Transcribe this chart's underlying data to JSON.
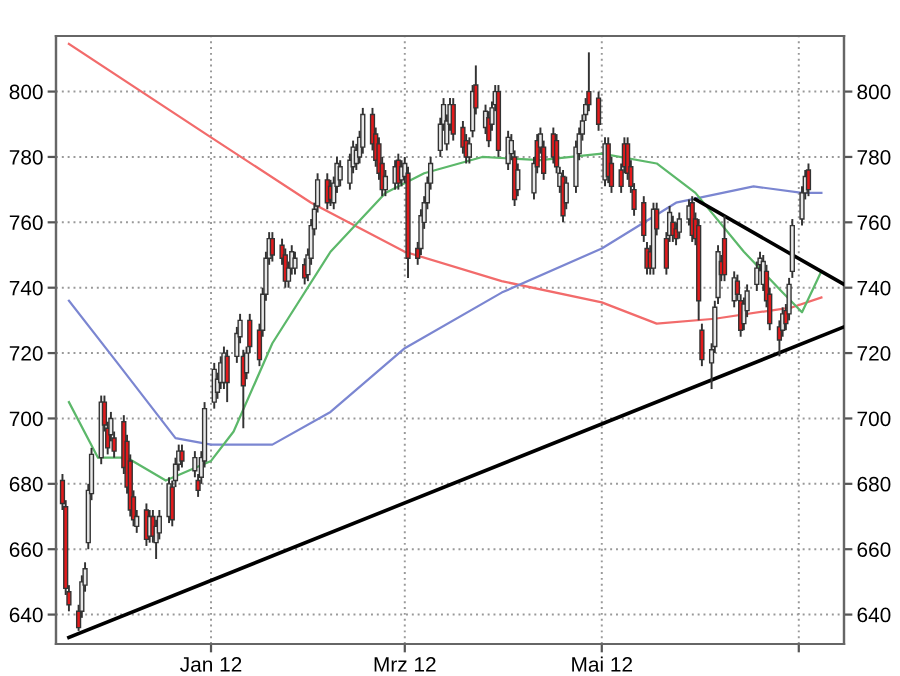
{
  "chart_data": {
    "type": "candlestick",
    "x": [
      "2011-11-16",
      "2011-11-17",
      "2011-11-18",
      "2011-11-21",
      "2011-11-22",
      "2011-11-23",
      "2011-11-24",
      "2011-11-25",
      "2011-11-28",
      "2011-11-29",
      "2011-11-30",
      "2011-12-01",
      "2011-12-02",
      "2011-12-05",
      "2011-12-06",
      "2011-12-07",
      "2011-12-08",
      "2011-12-09",
      "2011-12-12",
      "2011-12-13",
      "2011-12-14",
      "2011-12-15",
      "2011-12-16",
      "2011-12-19",
      "2011-12-20",
      "2011-12-21",
      "2011-12-22",
      "2011-12-23",
      "2011-12-27",
      "2011-12-28",
      "2011-12-29",
      "2011-12-30",
      "2012-01-02",
      "2012-01-03",
      "2012-01-04",
      "2012-01-05",
      "2012-01-06",
      "2012-01-09",
      "2012-01-10",
      "2012-01-11",
      "2012-01-12",
      "2012-01-13",
      "2012-01-16",
      "2012-01-17",
      "2012-01-18",
      "2012-01-19",
      "2012-01-20",
      "2012-01-23",
      "2012-01-24",
      "2012-01-25",
      "2012-01-26",
      "2012-01-27",
      "2012-01-30",
      "2012-01-31",
      "2012-02-01",
      "2012-02-02",
      "2012-02-03",
      "2012-02-06",
      "2012-02-07",
      "2012-02-08",
      "2012-02-09",
      "2012-02-10",
      "2012-02-13",
      "2012-02-14",
      "2012-02-15",
      "2012-02-16",
      "2012-02-17",
      "2012-02-20",
      "2012-02-21",
      "2012-02-22",
      "2012-02-23",
      "2012-02-24",
      "2012-02-27",
      "2012-02-28",
      "2012-02-29",
      "2012-03-01",
      "2012-03-02",
      "2012-03-05",
      "2012-03-06",
      "2012-03-07",
      "2012-03-08",
      "2012-03-09",
      "2012-03-12",
      "2012-03-13",
      "2012-03-14",
      "2012-03-15",
      "2012-03-16",
      "2012-03-19",
      "2012-03-20",
      "2012-03-21",
      "2012-03-22",
      "2012-03-23",
      "2012-03-26",
      "2012-03-27",
      "2012-03-28",
      "2012-03-29",
      "2012-03-30",
      "2012-04-02",
      "2012-04-03",
      "2012-04-04",
      "2012-04-05",
      "2012-04-10",
      "2012-04-11",
      "2012-04-12",
      "2012-04-13",
      "2012-04-16",
      "2012-04-17",
      "2012-04-18",
      "2012-04-19",
      "2012-04-20",
      "2012-04-23",
      "2012-04-24",
      "2012-04-25",
      "2012-04-26",
      "2012-04-27",
      "2012-04-30",
      "2012-05-02",
      "2012-05-03",
      "2012-05-04",
      "2012-05-07",
      "2012-05-08",
      "2012-05-09",
      "2012-05-10",
      "2012-05-11",
      "2012-05-14",
      "2012-05-15",
      "2012-05-16",
      "2012-05-17",
      "2012-05-18",
      "2012-05-21",
      "2012-05-22",
      "2012-05-23",
      "2012-05-24",
      "2012-05-25",
      "2012-05-28",
      "2012-05-29",
      "2012-05-30",
      "2012-05-31",
      "2012-06-01",
      "2012-06-04",
      "2012-06-05",
      "2012-06-06",
      "2012-06-07",
      "2012-06-08",
      "2012-06-11",
      "2012-06-12",
      "2012-06-13",
      "2012-06-14",
      "2012-06-15",
      "2012-06-18",
      "2012-06-19",
      "2012-06-20",
      "2012-06-21",
      "2012-06-22",
      "2012-06-25",
      "2012-06-26",
      "2012-06-27",
      "2012-06-28",
      "2012-06-29",
      "2012-07-02",
      "2012-07-03",
      "2012-07-04"
    ],
    "ohlc": [
      [
        681,
        683,
        672,
        674
      ],
      [
        673,
        675,
        646,
        648
      ],
      [
        647,
        649,
        641,
        643
      ],
      [
        641,
        643,
        635,
        636
      ],
      [
        641,
        652,
        639,
        650
      ],
      [
        649,
        656,
        647,
        654
      ],
      [
        662,
        680,
        660,
        678
      ],
      [
        677,
        691,
        675,
        689
      ],
      [
        688,
        707,
        686,
        705
      ],
      [
        705,
        707,
        696,
        698
      ],
      [
        697,
        699,
        689,
        691
      ],
      [
        695,
        702,
        693,
        700
      ],
      [
        694,
        696,
        688,
        690
      ],
      [
        699,
        701,
        683,
        685
      ],
      [
        693,
        695,
        677,
        679
      ],
      [
        687,
        689,
        670,
        672
      ],
      [
        676,
        678,
        667,
        669
      ],
      [
        667,
        672,
        665,
        670
      ],
      [
        672,
        674,
        661,
        663
      ],
      [
        664,
        672,
        662,
        670
      ],
      [
        670,
        672,
        662,
        664
      ],
      [
        662,
        669,
        657,
        667
      ],
      [
        665,
        672,
        663,
        670
      ],
      [
        670,
        682,
        668,
        680
      ],
      [
        679,
        681,
        667,
        669
      ],
      [
        681,
        688,
        679,
        686
      ],
      [
        686,
        692,
        684,
        690
      ],
      [
        690,
        692,
        685,
        687
      ],
      [
        684,
        690,
        682,
        688
      ],
      [
        681,
        683,
        676,
        678
      ],
      [
        682,
        690,
        680,
        688
      ],
      [
        687,
        705,
        685,
        703
      ],
      [
        705,
        717,
        703,
        715
      ],
      [
        708,
        714,
        706,
        712
      ],
      [
        711,
        719,
        709,
        717
      ],
      [
        711,
        722,
        709,
        720
      ],
      [
        719,
        721,
        705,
        711
      ],
      [
        719,
        728,
        717,
        726
      ],
      [
        725,
        732,
        723,
        730
      ],
      [
        719,
        721,
        697,
        710
      ],
      [
        714,
        722,
        712,
        720
      ],
      [
        730,
        732,
        720,
        722
      ],
      [
        727,
        729,
        716,
        718
      ],
      [
        727,
        740,
        725,
        738
      ],
      [
        738,
        751,
        736,
        749
      ],
      [
        749,
        757,
        747,
        755
      ],
      [
        755,
        757,
        748,
        750
      ],
      [
        753,
        755,
        747,
        749
      ],
      [
        750,
        752,
        740,
        742
      ],
      [
        742,
        748,
        740,
        746
      ],
      [
        746,
        753,
        744,
        751
      ],
      [
        746,
        751,
        744,
        749
      ],
      [
        747,
        749,
        741,
        743
      ],
      [
        744,
        752,
        742,
        750
      ],
      [
        749,
        761,
        747,
        759
      ],
      [
        758,
        766,
        756,
        764
      ],
      [
        765,
        775,
        763,
        773
      ],
      [
        773,
        775,
        764,
        766
      ],
      [
        771,
        773,
        765,
        767
      ],
      [
        766,
        774,
        764,
        772
      ],
      [
        771,
        780,
        769,
        778
      ],
      [
        773,
        779,
        771,
        777
      ],
      [
        772,
        781,
        770,
        779
      ],
      [
        777,
        785,
        775,
        783
      ],
      [
        778,
        784,
        776,
        782
      ],
      [
        780,
        788,
        778,
        786
      ],
      [
        783,
        795,
        781,
        793
      ],
      [
        793,
        795,
        782,
        784
      ],
      [
        787,
        789,
        777,
        779
      ],
      [
        784,
        786,
        773,
        775
      ],
      [
        778,
        780,
        768,
        770
      ],
      [
        770,
        776,
        768,
        774
      ],
      [
        772,
        779,
        770,
        777
      ],
      [
        779,
        781,
        770,
        772
      ],
      [
        773,
        779,
        771,
        777
      ],
      [
        774,
        780,
        772,
        778
      ],
      [
        775,
        777,
        743,
        749
      ],
      [
        752,
        754,
        747,
        749
      ],
      [
        752,
        764,
        750,
        762
      ],
      [
        760,
        768,
        758,
        766
      ],
      [
        766,
        774,
        764,
        772
      ],
      [
        772,
        780,
        770,
        778
      ],
      [
        782,
        792,
        780,
        790
      ],
      [
        790,
        798,
        788,
        796
      ],
      [
        784,
        793,
        782,
        791
      ],
      [
        790,
        798,
        788,
        796
      ],
      [
        796,
        798,
        785,
        787
      ],
      [
        789,
        791,
        781,
        783
      ],
      [
        785,
        787,
        778,
        780
      ],
      [
        780,
        786,
        778,
        784
      ],
      [
        788,
        802,
        786,
        800
      ],
      [
        802,
        808,
        793,
        795
      ],
      [
        789,
        796,
        787,
        794
      ],
      [
        792,
        794,
        783,
        785
      ],
      [
        790,
        797,
        788,
        795
      ],
      [
        796,
        802,
        794,
        800
      ],
      [
        800,
        802,
        780,
        782
      ],
      [
        778,
        788,
        776,
        786
      ],
      [
        781,
        787,
        779,
        785
      ],
      [
        780,
        782,
        765,
        767
      ],
      [
        770,
        778,
        768,
        776
      ],
      [
        769,
        780,
        767,
        778
      ],
      [
        785,
        787,
        775,
        777
      ],
      [
        783,
        789,
        781,
        787
      ],
      [
        783,
        785,
        773,
        775
      ],
      [
        787,
        789,
        778,
        780
      ],
      [
        785,
        787,
        775,
        777
      ],
      [
        771,
        777,
        769,
        775
      ],
      [
        774,
        776,
        760,
        762
      ],
      [
        766,
        774,
        764,
        772
      ],
      [
        771,
        785,
        769,
        783
      ],
      [
        781,
        789,
        779,
        787
      ],
      [
        787,
        793,
        785,
        791
      ],
      [
        793,
        798,
        791,
        796
      ],
      [
        800,
        812,
        794,
        796
      ],
      [
        798,
        800,
        788,
        790
      ],
      [
        773,
        786,
        771,
        784
      ],
      [
        784,
        786,
        772,
        774
      ],
      [
        778,
        780,
        769,
        771
      ],
      [
        776,
        778,
        769,
        771
      ],
      [
        784,
        786,
        775,
        777
      ],
      [
        784,
        786,
        773,
        775
      ],
      [
        777,
        779,
        769,
        771
      ],
      [
        770,
        772,
        762,
        764
      ],
      [
        766,
        768,
        754,
        756
      ],
      [
        752,
        754,
        744,
        746
      ],
      [
        751,
        753,
        744,
        746
      ],
      [
        746,
        766,
        744,
        764
      ],
      [
        764,
        766,
        756,
        758
      ],
      [
        755,
        757,
        744,
        746
      ],
      [
        756,
        765,
        754,
        763
      ],
      [
        760,
        762,
        754,
        756
      ],
      [
        758,
        760,
        753,
        755
      ],
      [
        757,
        763,
        755,
        761
      ],
      [
        761,
        767,
        759,
        765
      ],
      [
        766,
        768,
        754,
        756
      ],
      [
        761,
        763,
        753,
        755
      ],
      [
        759,
        761,
        730,
        736
      ],
      [
        727,
        729,
        716,
        718
      ],
      [
        717,
        723,
        709,
        721
      ],
      [
        722,
        736,
        720,
        734
      ],
      [
        737,
        753,
        735,
        751
      ],
      [
        748,
        750,
        742,
        744
      ],
      [
        755,
        762,
        742,
        744
      ],
      [
        736,
        745,
        734,
        743
      ],
      [
        742,
        744,
        736,
        738
      ],
      [
        736,
        738,
        725,
        727
      ],
      [
        729,
        737,
        727,
        735
      ],
      [
        733,
        741,
        731,
        739
      ],
      [
        741,
        748,
        739,
        746
      ],
      [
        747,
        751,
        745,
        749
      ],
      [
        741,
        750,
        739,
        748
      ],
      [
        745,
        747,
        734,
        736
      ],
      [
        738,
        740,
        727,
        729
      ],
      [
        728,
        730,
        719,
        724
      ],
      [
        727,
        734,
        725,
        732
      ],
      [
        733,
        735,
        727,
        729
      ],
      [
        732,
        743,
        730,
        741
      ],
      [
        745,
        761,
        743,
        759
      ],
      [
        761,
        771,
        759,
        769
      ],
      [
        769,
        776,
        767,
        774
      ],
      [
        776,
        778,
        768,
        770
      ]
    ],
    "series": [
      {
        "type": "line",
        "color": "#f26b6b",
        "x": [
          "2011-11-18",
          "2012-01-01",
          "2012-02-01",
          "2012-03-01",
          "2012-03-31",
          "2012-05-01",
          "2012-05-18",
          "2012-06-05",
          "2012-06-29",
          "2012-07-08"
        ],
        "values": [
          814.6,
          786,
          766,
          751,
          742,
          735.5,
          729,
          730.5,
          734,
          737
        ]
      },
      {
        "type": "line",
        "color": "#7b86d1",
        "x": [
          "2011-11-18",
          "2011-12-03",
          "2011-12-21",
          "2012-01-01",
          "2012-01-20",
          "2012-02-07",
          "2012-03-01",
          "2012-03-31",
          "2012-05-01",
          "2012-05-24",
          "2012-06-17",
          "2012-07-02",
          "2012-07-08"
        ],
        "values": [
          736,
          717,
          694,
          692,
          692,
          702,
          721.5,
          738.5,
          752,
          766,
          771,
          769,
          769
        ]
      },
      {
        "type": "line",
        "color": "#5cb86a",
        "x": [
          "2011-11-18",
          "2011-11-27",
          "2011-12-06",
          "2011-12-18",
          "2012-01-01",
          "2012-01-08",
          "2012-01-20",
          "2012-02-07",
          "2012-02-24",
          "2012-03-07",
          "2012-03-25",
          "2012-04-12",
          "2012-05-01",
          "2012-05-18",
          "2012-05-30",
          "2012-06-14",
          "2012-06-26",
          "2012-07-02",
          "2012-07-08"
        ],
        "values": [
          705,
          688,
          688,
          681,
          687,
          696,
          723,
          751,
          769,
          775,
          780,
          779,
          781,
          778,
          769,
          751,
          738.5,
          732.5,
          745
        ]
      },
      {
        "type": "line",
        "color": "#000000",
        "x": [
          "2011-11-18",
          "2012-07-15"
        ],
        "values": [
          633,
          728
        ]
      },
      {
        "type": "line",
        "color": "#000000",
        "x": [
          "2012-05-30",
          "2012-07-15"
        ],
        "values": [
          767,
          741
        ]
      }
    ],
    "xlim": [
      "2011-11-14",
      "2012-07-15"
    ],
    "xticks": [
      {
        "value": "2012-01-01",
        "label": "Jan 12"
      },
      {
        "value": "2012-03-01",
        "label": "Mrz 12"
      },
      {
        "value": "2012-05-01",
        "label": "Mai 12"
      },
      {
        "value": "2012-07-01",
        "label": null
      }
    ],
    "ylim": [
      631,
      817
    ],
    "yticks": [
      640,
      660,
      680,
      700,
      720,
      740,
      760,
      780,
      800
    ],
    "y2lim": [
      631,
      817
    ],
    "y2ticks": [
      640,
      660,
      680,
      700,
      720,
      740,
      760,
      780,
      800
    ],
    "grid": true
  }
}
